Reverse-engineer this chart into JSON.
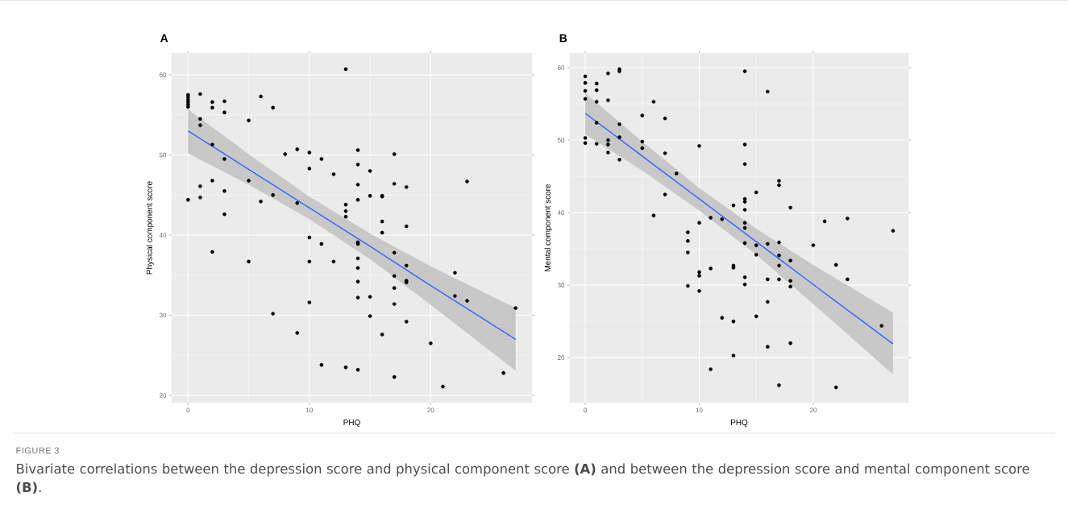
{
  "chart_data": [
    {
      "type": "scatter",
      "title": "A",
      "xlabel": "PHQ",
      "ylabel": "Physical component score",
      "xlim": [
        -1.35,
        28.35
      ],
      "ylim": [
        19.1,
        62.7
      ],
      "xticks": [
        0,
        10,
        20
      ],
      "yticks": [
        20,
        30,
        40,
        50,
        60
      ],
      "grid": true,
      "annotations": [
        "FIGURE 3",
        "Bivariate correlations between the depression score and physical component score **(A)** and between the depression score and mental component score **(B)**."
      ],
      "series": [
        {
          "marker": "circle",
          "color": "#000000",
          "x": [
            0,
            0,
            0,
            0,
            0,
            0,
            0,
            1,
            1,
            1,
            1,
            1,
            2,
            2,
            2,
            2,
            2,
            3,
            3,
            3,
            3,
            3,
            5,
            5,
            5,
            6,
            6,
            7,
            7,
            7,
            8,
            9,
            9,
            9,
            10,
            10,
            10,
            10,
            10,
            11,
            11,
            11,
            12,
            12,
            13,
            13,
            13,
            13,
            13,
            14,
            14,
            14,
            14,
            14,
            14,
            14,
            14,
            14,
            14,
            14,
            15,
            15,
            15,
            15,
            16,
            16,
            16,
            16,
            16,
            17,
            17,
            17,
            17,
            17,
            17,
            17,
            18,
            18,
            18,
            18,
            18,
            18,
            20,
            21,
            22,
            22,
            23,
            23,
            26,
            27
          ],
          "values": [
            57.5,
            57.2,
            56.9,
            56.6,
            56.3,
            56.0,
            44.4,
            57.6,
            54.5,
            53.7,
            46.1,
            44.7,
            56.6,
            55.9,
            51.3,
            46.8,
            37.9,
            56.7,
            55.3,
            49.5,
            45.5,
            42.6,
            54.3,
            46.8,
            36.7,
            57.3,
            44.2,
            55.9,
            45.0,
            30.2,
            50.1,
            50.7,
            44.0,
            27.8,
            50.3,
            48.3,
            39.7,
            36.7,
            31.6,
            49.5,
            38.9,
            23.8,
            47.6,
            36.7,
            60.7,
            43.8,
            43.0,
            42.3,
            23.5,
            50.6,
            48.8,
            46.3,
            44.4,
            39.1,
            38.9,
            37.1,
            35.9,
            34.2,
            32.2,
            23.2,
            48.0,
            44.9,
            32.3,
            29.9,
            44.9,
            44.8,
            41.7,
            40.3,
            27.6,
            50.1,
            46.4,
            37.8,
            34.9,
            33.4,
            31.4,
            22.3,
            46.0,
            41.1,
            36.2,
            34.3,
            34.1,
            29.2,
            26.5,
            21.1,
            35.3,
            32.4,
            46.7,
            31.8,
            22.8,
            30.9
          ]
        },
        {
          "type": "line",
          "marker": "none",
          "color": "#3366ff",
          "x": [
            0,
            5,
            10,
            15,
            20,
            27
          ],
          "values": [
            53.0,
            48.2,
            43.4,
            38.6,
            33.7,
            27.0
          ],
          "lower": [
            50.2,
            46.3,
            42.0,
            37.0,
            31.3,
            23.1
          ],
          "upper": [
            55.7,
            50.1,
            44.8,
            40.2,
            36.1,
            30.9
          ]
        }
      ]
    },
    {
      "type": "scatter",
      "title": "B",
      "xlabel": "PHQ",
      "ylabel": "Mental component score",
      "xlim": [
        -1.35,
        28.35
      ],
      "ylim": [
        13.8,
        62.0
      ],
      "xticks": [
        0,
        10,
        20
      ],
      "yticks": [
        20,
        30,
        40,
        50,
        60
      ],
      "grid": true,
      "series": [
        {
          "marker": "circle",
          "color": "#000000",
          "x": [
            0,
            0,
            0,
            0,
            0,
            0,
            1,
            1,
            1,
            1,
            1,
            2,
            2,
            2,
            2,
            2,
            3,
            3,
            3,
            3,
            3,
            5,
            5,
            5,
            6,
            6,
            7,
            7,
            7,
            8,
            9,
            9,
            9,
            9,
            10,
            10,
            10,
            10,
            10,
            11,
            11,
            11,
            12,
            12,
            13,
            13,
            13,
            13,
            13,
            14,
            14,
            14,
            14,
            14,
            14,
            14,
            14,
            14,
            14,
            14,
            15,
            15,
            15,
            15,
            16,
            16,
            16,
            16,
            16,
            17,
            17,
            17,
            17,
            17,
            17,
            17,
            18,
            18,
            18,
            18,
            18,
            20,
            21,
            22,
            22,
            23,
            23,
            26,
            27
          ],
          "values": [
            58.8,
            57.9,
            56.8,
            55.7,
            50.3,
            49.6,
            57.8,
            56.9,
            55.3,
            52.4,
            49.5,
            59.2,
            55.5,
            50.0,
            49.4,
            48.3,
            59.8,
            59.5,
            52.2,
            50.4,
            47.3,
            53.4,
            49.8,
            48.9,
            55.3,
            39.6,
            53.0,
            48.2,
            42.5,
            45.4,
            37.3,
            36.1,
            34.5,
            29.9,
            49.2,
            38.6,
            31.8,
            31.3,
            29.2,
            39.3,
            32.3,
            18.4,
            39.1,
            25.5,
            41.0,
            32.7,
            32.4,
            25.0,
            20.3,
            59.5,
            49.4,
            46.7,
            41.9,
            41.5,
            40.4,
            38.6,
            37.9,
            35.8,
            31.1,
            30.1,
            42.8,
            35.5,
            34.2,
            25.7,
            56.7,
            35.7,
            30.8,
            27.7,
            21.5,
            44.4,
            43.8,
            35.9,
            34.1,
            32.7,
            30.8,
            16.2,
            40.7,
            33.4,
            30.6,
            29.8,
            22.0,
            35.5,
            38.8,
            32.8,
            15.9,
            39.2,
            30.8,
            24.4,
            37.5
          ]
        },
        {
          "type": "line",
          "marker": "none",
          "color": "#3366ff",
          "x": [
            0,
            5,
            10,
            15,
            20,
            27
          ],
          "values": [
            53.7,
            47.8,
            41.9,
            36.0,
            30.1,
            21.9
          ],
          "lower": [
            50.8,
            45.8,
            40.3,
            34.2,
            27.4,
            17.7
          ],
          "upper": [
            56.5,
            49.8,
            43.4,
            37.8,
            32.8,
            26.2
          ]
        }
      ]
    }
  ]
}
